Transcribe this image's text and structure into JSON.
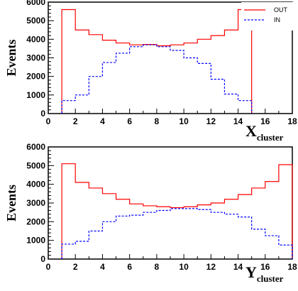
{
  "chart_data": [
    {
      "type": "histogram",
      "ylabel": "Events",
      "xlabel_main": "X",
      "xlabel_sub": "cluster",
      "xlim": [
        0,
        18
      ],
      "ylim": [
        0,
        6000
      ],
      "xticks": [
        "0",
        "2",
        "4",
        "6",
        "8",
        "10",
        "12",
        "14",
        "16",
        "18"
      ],
      "yticks": [
        "0",
        "1000",
        "2000",
        "3000",
        "4000",
        "5000",
        "6000"
      ],
      "bin_edges": [
        1,
        2,
        3,
        4,
        5,
        6,
        7,
        8,
        9,
        10,
        11,
        12,
        13,
        14
      ],
      "legend_position": "top-right",
      "series": [
        {
          "name": "OUT",
          "color": "#ff0000",
          "style": "solid",
          "values": [
            5600,
            4500,
            4250,
            3950,
            3800,
            3700,
            3720,
            3650,
            3700,
            3800,
            4000,
            4200,
            4500,
            5600
          ]
        },
        {
          "name": "IN",
          "color": "#0000ff",
          "style": "dashed",
          "values": [
            700,
            1000,
            2000,
            2750,
            3250,
            3600,
            3700,
            3600,
            3400,
            3000,
            2700,
            1850,
            1050,
            700
          ]
        }
      ]
    },
    {
      "type": "histogram",
      "ylabel": "Events",
      "xlabel_main": "Y",
      "xlabel_sub": "cluster",
      "xlim": [
        0,
        18
      ],
      "ylim": [
        0,
        6000
      ],
      "xticks": [
        "0",
        "2",
        "4",
        "6",
        "8",
        "10",
        "12",
        "14",
        "16",
        "18"
      ],
      "yticks": [
        "0",
        "1000",
        "2000",
        "3000",
        "4000",
        "5000",
        "6000"
      ],
      "bin_edges": [
        1,
        2,
        3,
        4,
        5,
        6,
        7,
        8,
        9,
        10,
        11,
        12,
        13,
        14,
        15,
        16,
        17
      ],
      "series": [
        {
          "name": "OUT",
          "color": "#ff0000",
          "style": "solid",
          "values": [
            5100,
            4100,
            3800,
            3500,
            3200,
            2950,
            2850,
            2800,
            2750,
            2800,
            2900,
            3000,
            3200,
            3450,
            3800,
            4150,
            5050
          ]
        },
        {
          "name": "IN",
          "color": "#0000ff",
          "style": "dashed",
          "values": [
            800,
            950,
            1500,
            2000,
            2300,
            2350,
            2500,
            2600,
            2700,
            2700,
            2650,
            2500,
            2400,
            2250,
            1600,
            1250,
            750
          ]
        }
      ]
    }
  ]
}
